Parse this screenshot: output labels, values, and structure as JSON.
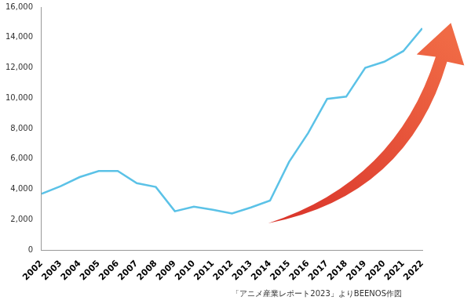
{
  "chart_data": {
    "type": "line",
    "categories": [
      "2002",
      "2003",
      "2004",
      "2005",
      "2006",
      "2007",
      "2008",
      "2009",
      "2010",
      "2011",
      "2012",
      "2013",
      "2014",
      "2015",
      "2016",
      "2017",
      "2018",
      "2019",
      "2020",
      "2021",
      "2022"
    ],
    "values": [
      3700,
      4200,
      4800,
      5200,
      5200,
      4400,
      4150,
      2550,
      2850,
      2650,
      2400,
      2800,
      3250,
      5800,
      7700,
      9950,
      10100,
      12000,
      12400,
      13100,
      14600
    ],
    "color": "#5bc2e7",
    "ylim": [
      0,
      16000
    ],
    "yticks": [
      0,
      {
        "value": 2000,
        "label": "2,000"
      },
      {
        "value": 4000,
        "label": "4,000"
      },
      {
        "value": 6000,
        "label": "6,000"
      },
      {
        "value": 8000,
        "label": "8,000"
      },
      {
        "value": 10000,
        "label": "10,000"
      },
      {
        "value": 12000,
        "label": "12,000"
      },
      {
        "value": 14000,
        "label": "14,000"
      },
      {
        "value": 16000,
        "label": "16,000"
      }
    ],
    "grid": false,
    "annotations": [
      "「アニメ産業レポート2023」よりBEENOS作図"
    ]
  }
}
